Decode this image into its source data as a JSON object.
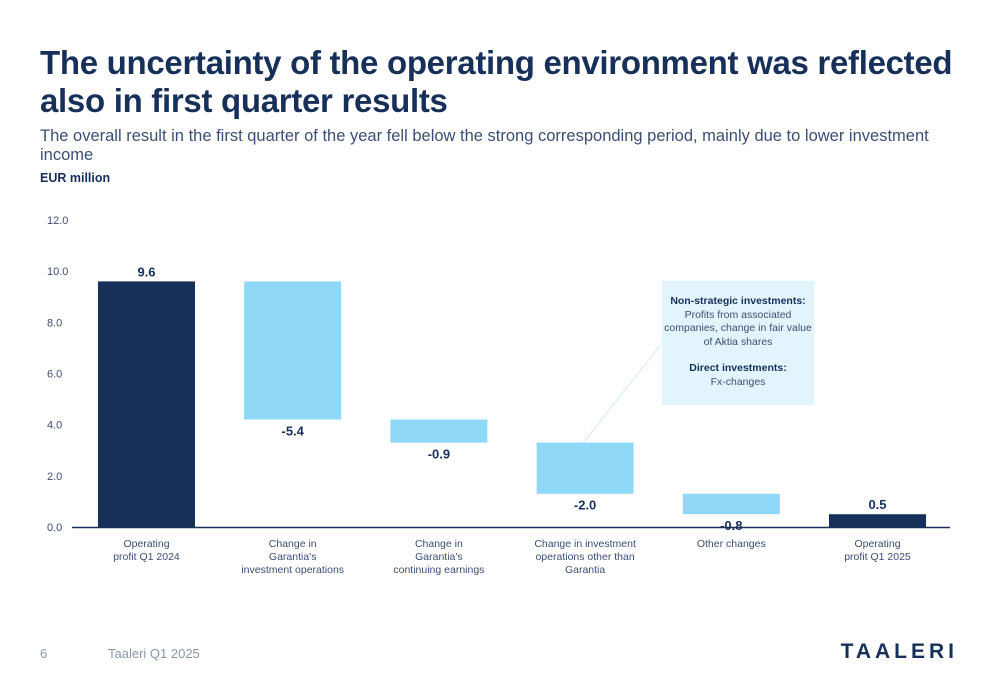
{
  "header": {
    "title": "The uncertainty of the operating environment was reflected also in first quarter results",
    "subtitle": "The overall result in the first quarter of the year fell below the strong corresponding period, mainly due to lower investment income",
    "unit_label": "EUR million"
  },
  "callout": {
    "heading_1": "Non-strategic investments:",
    "body_1": "Profits from associated companies, change in fair value of Aktia shares",
    "heading_2": "Direct investments:",
    "body_2": "Fx-changes"
  },
  "footer": {
    "page_number": "6",
    "document": "Taaleri Q1 2025",
    "logo_text": "TAALERI"
  },
  "colors": {
    "total_bar": "#17305a",
    "change_bar": "#8fd8f7",
    "axis": "#17305a"
  },
  "chart_data": {
    "type": "bar",
    "subtype": "waterfall",
    "categories": [
      [
        "Operating",
        "profit Q1 2024"
      ],
      [
        "Change in",
        "Garantia's",
        "investment operations"
      ],
      [
        "Change in",
        "Garantia's",
        "continuing earnings"
      ],
      [
        "Change in investment",
        "operations other than",
        "Garantia"
      ],
      [
        "Other changes"
      ],
      [
        "Operating",
        "profit Q1 2025"
      ]
    ],
    "values": [
      9.6,
      -5.4,
      -0.9,
      -2.0,
      -0.8,
      0.5
    ],
    "data_labels": [
      "9.6",
      "-5.4",
      "-0.9",
      "-2.0",
      "-0.8",
      "0.5"
    ],
    "bar_kinds": [
      "total",
      "change",
      "change",
      "change",
      "change",
      "total"
    ],
    "y_ticks": [
      "0.0",
      "2.0",
      "4.0",
      "6.0",
      "8.0",
      "10.0",
      "12.0"
    ],
    "ylim": [
      0,
      12
    ],
    "grid": false
  }
}
